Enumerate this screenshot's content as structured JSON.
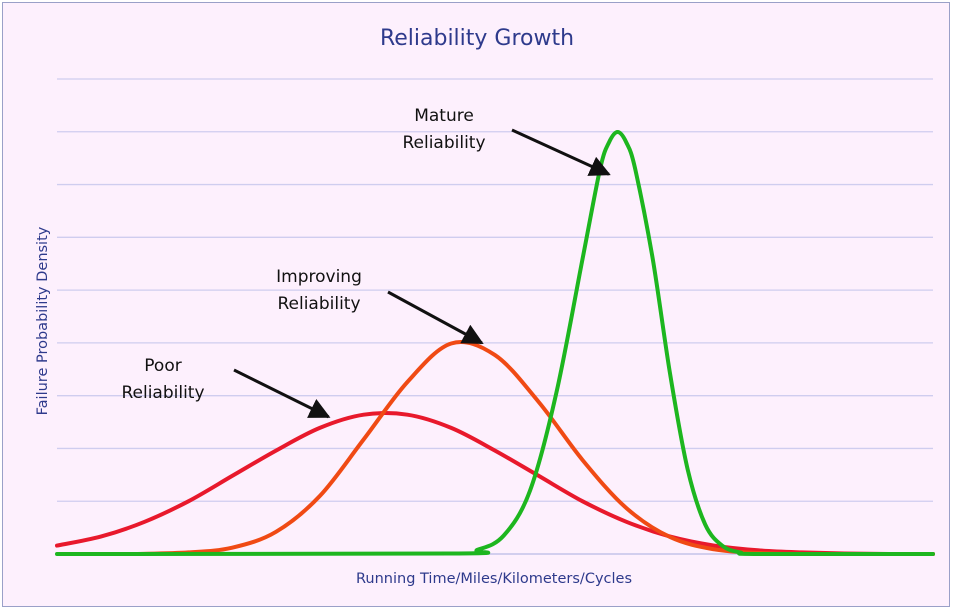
{
  "chart_data": {
    "type": "line",
    "title": "Reliability Growth",
    "xlabel": "Running Time/Miles/Kilometers/Cycles",
    "ylabel": "Failure Probability Density",
    "xlim": [
      0,
      100
    ],
    "ylim": [
      0,
      8
    ],
    "grid": "horizontal",
    "legend": "none",
    "series": [
      {
        "key": "poor",
        "color": "#e8192c",
        "x": [
          0,
          5,
          10,
          15,
          20,
          25,
          30,
          35,
          40,
          45,
          50,
          55,
          60,
          65,
          70,
          75,
          80,
          85,
          90,
          95,
          100
        ],
        "y": [
          0.16,
          0.33,
          0.61,
          1.0,
          1.48,
          1.96,
          2.39,
          2.64,
          2.64,
          2.39,
          1.96,
          1.48,
          1.0,
          0.61,
          0.33,
          0.16,
          0.07,
          0.03,
          0.01,
          0.0,
          0.0
        ]
      },
      {
        "key": "improving",
        "color": "#f04a14",
        "x": [
          9,
          15,
          20,
          25,
          30,
          35,
          40,
          45,
          50,
          55,
          60,
          65,
          70,
          75,
          80,
          85,
          90,
          95,
          100
        ],
        "y": [
          0.0,
          0.03,
          0.12,
          0.42,
          1.1,
          2.17,
          3.26,
          3.99,
          3.77,
          2.88,
          1.78,
          0.87,
          0.32,
          0.09,
          0.02,
          0.0,
          0.0,
          0.0,
          0.0
        ]
      },
      {
        "key": "mature",
        "color": "#1db61f",
        "x": [
          0,
          45,
          48,
          51,
          54,
          57,
          60,
          62,
          63,
          64,
          65,
          66,
          68,
          70,
          72,
          74,
          76,
          78,
          80,
          100
        ],
        "y": [
          0.0,
          0.01,
          0.08,
          0.35,
          1.2,
          3.05,
          5.6,
          7.3,
          7.8,
          8.0,
          7.8,
          7.3,
          5.6,
          3.4,
          1.6,
          0.56,
          0.15,
          0.03,
          0.0,
          0.0
        ]
      }
    ],
    "annotations": [
      {
        "key": "mature",
        "lines": [
          "Mature",
          "Reliability"
        ],
        "target": [
          63,
          7.2
        ]
      },
      {
        "key": "improving",
        "lines": [
          "Improving",
          "Reliability"
        ],
        "target": [
          48.5,
          4.0
        ]
      },
      {
        "key": "poor",
        "lines": [
          "Poor",
          "Reliability"
        ],
        "target": [
          31,
          2.6
        ]
      }
    ]
  }
}
